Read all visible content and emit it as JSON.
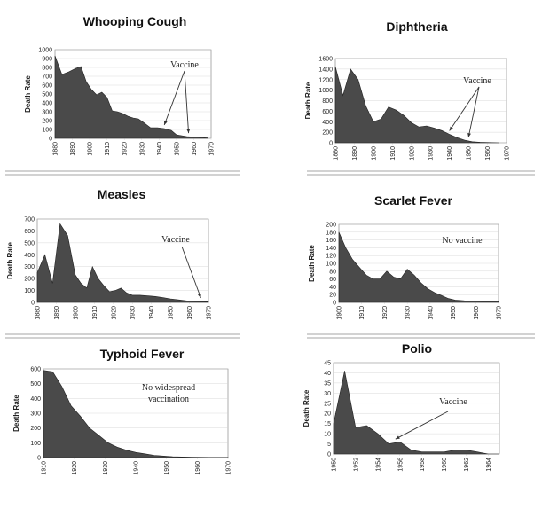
{
  "chart_data": [
    {
      "type": "area",
      "title": "Whooping Cough",
      "ylabel": "Death Rate",
      "xlim": [
        1880,
        1970
      ],
      "ylim": [
        0,
        1000
      ],
      "xticks": [
        1880,
        1890,
        1900,
        1910,
        1920,
        1930,
        1940,
        1950,
        1960,
        1970
      ],
      "yticks": [
        0,
        100,
        200,
        300,
        400,
        500,
        600,
        700,
        800,
        900,
        1000
      ],
      "x": [
        1880,
        1884,
        1888,
        1892,
        1895,
        1898,
        1901,
        1904,
        1907,
        1910,
        1913,
        1916,
        1919,
        1922,
        1925,
        1928,
        1931,
        1935,
        1939,
        1943,
        1947,
        1950,
        1953,
        1956,
        1960,
        1964,
        1968
      ],
      "values": [
        930,
        720,
        750,
        790,
        810,
        640,
        550,
        490,
        520,
        460,
        310,
        300,
        280,
        250,
        230,
        220,
        180,
        120,
        120,
        110,
        90,
        40,
        30,
        20,
        15,
        10,
        5
      ],
      "annotation": {
        "text": "Vaccine",
        "targets": [
          1943,
          1957
        ]
      }
    },
    {
      "type": "area",
      "title": "Diphtheria",
      "ylabel": "Death Rate",
      "xlim": [
        1880,
        1970
      ],
      "ylim": [
        0,
        1600
      ],
      "xticks": [
        1880,
        1890,
        1900,
        1910,
        1920,
        1930,
        1940,
        1950,
        1960,
        1970
      ],
      "yticks": [
        0,
        200,
        400,
        600,
        800,
        1000,
        1200,
        1400,
        1600
      ],
      "x": [
        1880,
        1884,
        1888,
        1892,
        1896,
        1900,
        1904,
        1908,
        1912,
        1916,
        1920,
        1924,
        1928,
        1932,
        1936,
        1940,
        1944,
        1948,
        1952,
        1956,
        1960,
        1966
      ],
      "values": [
        1450,
        900,
        1400,
        1200,
        700,
        400,
        450,
        680,
        620,
        520,
        380,
        300,
        320,
        280,
        230,
        160,
        100,
        50,
        20,
        10,
        5,
        0
      ],
      "annotation": {
        "text": "Vaccine",
        "targets": [
          1940,
          1950
        ]
      }
    },
    {
      "type": "area",
      "title": "Measles",
      "ylabel": "Death Rate",
      "xlim": [
        1880,
        1970
      ],
      "ylim": [
        0,
        700
      ],
      "xticks": [
        1880,
        1890,
        1900,
        1910,
        1920,
        1930,
        1940,
        1950,
        1960,
        1970
      ],
      "yticks": [
        0,
        100,
        200,
        300,
        400,
        500,
        600,
        700
      ],
      "x": [
        1880,
        1884,
        1888,
        1892,
        1896,
        1900,
        1903,
        1906,
        1909,
        1912,
        1915,
        1918,
        1921,
        1924,
        1927,
        1930,
        1934,
        1938,
        1942,
        1946,
        1950,
        1955,
        1960,
        1965,
        1970
      ],
      "values": [
        250,
        400,
        160,
        660,
        560,
        230,
        160,
        120,
        300,
        200,
        140,
        90,
        100,
        120,
        80,
        60,
        60,
        55,
        50,
        40,
        30,
        20,
        10,
        8,
        5
      ],
      "annotation": {
        "text": "Vaccine",
        "targets": [
          1966
        ]
      }
    },
    {
      "type": "area",
      "title": "Scarlet Fever",
      "ylabel": "Death Rate",
      "xlim": [
        1900,
        1970
      ],
      "ylim": [
        0,
        200
      ],
      "xticks": [
        1900,
        1910,
        1920,
        1930,
        1940,
        1950,
        1960,
        1970
      ],
      "yticks": [
        0,
        20,
        40,
        60,
        80,
        100,
        120,
        140,
        160,
        180,
        200
      ],
      "x": [
        1900,
        1903,
        1906,
        1909,
        1912,
        1915,
        1918,
        1921,
        1924,
        1927,
        1930,
        1933,
        1936,
        1939,
        1942,
        1945,
        1948,
        1951,
        1955,
        1960,
        1965,
        1970
      ],
      "values": [
        180,
        140,
        110,
        90,
        70,
        60,
        60,
        80,
        65,
        60,
        85,
        70,
        50,
        35,
        25,
        18,
        10,
        6,
        4,
        3,
        2,
        2
      ],
      "annotation": {
        "text": "No vaccine",
        "targets": []
      }
    },
    {
      "type": "area",
      "title": "Typhoid Fever",
      "ylabel": "Death Rate",
      "xlim": [
        1910,
        1970
      ],
      "ylim": [
        0,
        600
      ],
      "xticks": [
        1910,
        1920,
        1930,
        1940,
        1950,
        1960,
        1970
      ],
      "yticks": [
        0,
        100,
        200,
        300,
        400,
        500,
        600
      ],
      "x": [
        1910,
        1913,
        1916,
        1919,
        1922,
        1925,
        1928,
        1931,
        1934,
        1937,
        1940,
        1943,
        1946,
        1949,
        1952,
        1955,
        1958,
        1961,
        1964,
        1967,
        1970
      ],
      "values": [
        590,
        580,
        480,
        350,
        280,
        200,
        150,
        100,
        70,
        50,
        35,
        25,
        15,
        10,
        6,
        4,
        3,
        2,
        1,
        1,
        1
      ],
      "annotation": {
        "text": "No widespread vaccination",
        "lines": [
          "No widespread",
          "vaccination"
        ],
        "targets": []
      }
    },
    {
      "type": "area",
      "title": "Polio",
      "ylabel": "Death Rate",
      "xlim": [
        1950,
        1965
      ],
      "ylim": [
        0,
        45
      ],
      "xticks": [
        1950,
        1952,
        1954,
        1956,
        1958,
        1960,
        1962,
        1964
      ],
      "yticks": [
        0,
        5,
        10,
        15,
        20,
        25,
        30,
        35,
        40,
        45
      ],
      "x": [
        1950,
        1951,
        1952,
        1953,
        1954,
        1955,
        1956,
        1957,
        1958,
        1959,
        1960,
        1961,
        1962,
        1963,
        1964,
        1965
      ],
      "values": [
        15,
        41,
        13,
        14,
        10,
        5,
        6,
        2,
        1,
        1,
        1,
        2,
        2,
        1,
        0,
        0
      ],
      "annotation": {
        "text": "Vaccine",
        "targets": [
          1955.6
        ]
      }
    }
  ]
}
